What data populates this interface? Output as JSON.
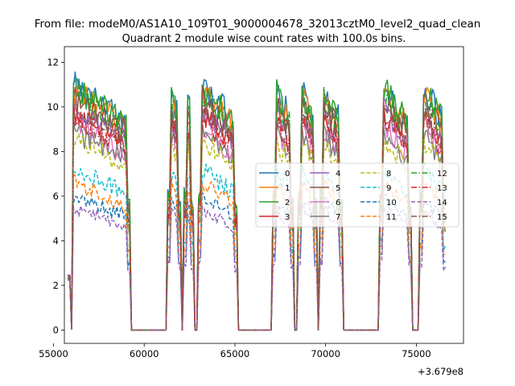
{
  "chart_data": {
    "type": "line",
    "suptitle": "From file: modeM0/AS1A10_109T01_9000004678_32013cztM0_level2_quad_clean",
    "title": "Quadrant 2 module wise count rates with 100.0s bins.",
    "xlabel": "",
    "ylabel": "",
    "x_offset_label": "+3.679e8",
    "xlim": [
      55600,
      77600
    ],
    "ylim": [
      -0.6,
      12.7
    ],
    "x_ticks": [
      55000,
      60000,
      65000,
      70000,
      75000
    ],
    "x_tick_labels": [
      "55000",
      "60000",
      "65000",
      "70000",
      "75000"
    ],
    "y_ticks": [
      0,
      2,
      4,
      6,
      8,
      10,
      12
    ],
    "y_tick_labels": [
      "0",
      "2",
      "4",
      "6",
      "8",
      "10",
      "12"
    ],
    "grid": false,
    "legend_position": "center-right",
    "legend_columns": 4,
    "gti_intervals": [
      [
        55900,
        59200
      ],
      [
        61300,
        62000
      ],
      [
        62200,
        62700
      ],
      [
        63000,
        65100
      ],
      [
        67100,
        68200
      ],
      [
        68500,
        69500
      ],
      [
        69700,
        70900
      ],
      [
        73000,
        74700
      ],
      [
        75200,
        76600
      ]
    ],
    "series": [
      {
        "name": "0",
        "color": "#1f77b4",
        "dash": "solid",
        "level": 10.5
      },
      {
        "name": "1",
        "color": "#ff7f0e",
        "dash": "solid",
        "level": 10.2
      },
      {
        "name": "2",
        "color": "#2ca02c",
        "dash": "solid",
        "level": 10.4
      },
      {
        "name": "3",
        "color": "#d62728",
        "dash": "solid",
        "level": 9.4
      },
      {
        "name": "4",
        "color": "#9467bd",
        "dash": "solid",
        "level": 9.5
      },
      {
        "name": "5",
        "color": "#8c564b",
        "dash": "solid",
        "level": 9.9
      },
      {
        "name": "6",
        "color": "#e377c2",
        "dash": "solid",
        "level": 8.8
      },
      {
        "name": "7",
        "color": "#7f7f7f",
        "dash": "solid",
        "level": 8.5
      },
      {
        "name": "8",
        "color": "#bcbd22",
        "dash": "dashed",
        "level": 8.2
      },
      {
        "name": "9",
        "color": "#17becf",
        "dash": "dashed",
        "level": 6.9
      },
      {
        "name": "10",
        "color": "#1f77b4",
        "dash": "dashed",
        "level": 5.7
      },
      {
        "name": "11",
        "color": "#ff7f0e",
        "dash": "dashed",
        "level": 6.3
      },
      {
        "name": "12",
        "color": "#2ca02c",
        "dash": "dashdot",
        "level": 10.1
      },
      {
        "name": "13",
        "color": "#d62728",
        "dash": "dashdot",
        "level": 9.1
      },
      {
        "name": "14",
        "color": "#9467bd",
        "dash": "dashed",
        "level": 5.2
      },
      {
        "name": "15",
        "color": "#8c564b",
        "dash": "dashdot",
        "level": 9.3
      }
    ]
  }
}
